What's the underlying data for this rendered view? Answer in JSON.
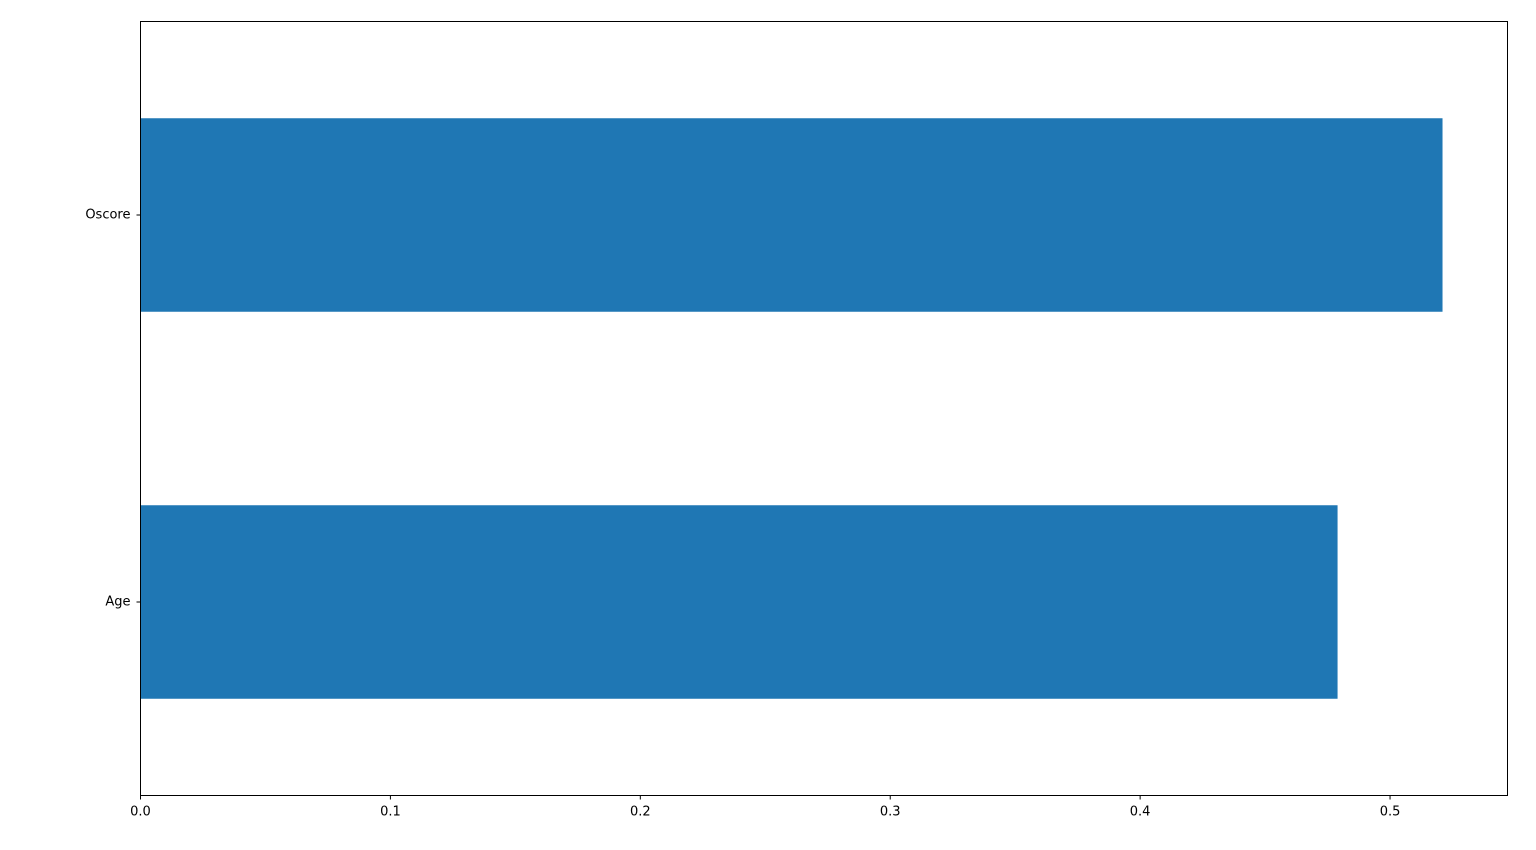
{
  "chart_data": {
    "type": "bar",
    "orientation": "horizontal",
    "title": "",
    "xlabel": "",
    "ylabel": "",
    "categories": [
      "Age",
      "Oscore"
    ],
    "values": [
      0.479,
      0.521
    ],
    "xlim": [
      0,
      0.547
    ],
    "xticks": [
      0.0,
      0.1,
      0.2,
      0.3,
      0.4,
      0.5
    ],
    "xtick_labels": [
      "0.0",
      "0.1",
      "0.2",
      "0.3",
      "0.4",
      "0.5"
    ],
    "bar_color": "#1f77b4",
    "grid": false,
    "legend": "none"
  }
}
